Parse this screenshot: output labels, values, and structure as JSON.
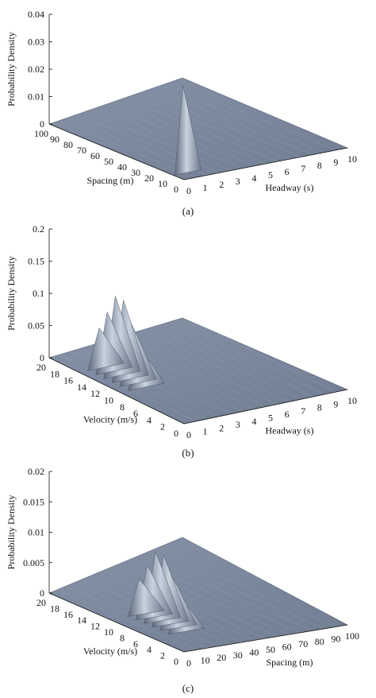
{
  "colors": {
    "surface_light": "#d8e0ea",
    "surface_mid": "#8b97aa",
    "surface_dark": "#5d697c",
    "floor": "#7e8b9f",
    "axis": "#111111"
  },
  "chart_data": [
    {
      "type": "surface",
      "caption": "(a)",
      "zlabel": "Probability Density",
      "xlabel": "Headway (s)",
      "ylabel": "Spacing (m)",
      "zlim": [
        0,
        0.04
      ],
      "xlim": [
        0,
        10
      ],
      "ylim": [
        0,
        100
      ],
      "ztick_labels": [
        "0",
        "0.01",
        "0.02",
        "0.03",
        "0.04"
      ],
      "xtick_labels": [
        "0",
        "1",
        "2",
        "3",
        "4",
        "5",
        "6",
        "7",
        "8",
        "9",
        "10"
      ],
      "ytick_labels": [
        "0",
        "10",
        "20",
        "30",
        "40",
        "50",
        "60",
        "70",
        "80",
        "90",
        "100"
      ],
      "peak": {
        "x": 0.6,
        "y": 8,
        "z": 0.032
      }
    },
    {
      "type": "surface",
      "caption": "(b)",
      "zlabel": "Probability Density",
      "xlabel": "Headway (s)",
      "ylabel": "Velocity (m/s)",
      "zlim": [
        0,
        0.2
      ],
      "xlim": [
        0,
        10
      ],
      "ylim": [
        0,
        20
      ],
      "ztick_labels": [
        "0",
        "0.05",
        "0.1",
        "0.15",
        "0.2"
      ],
      "xtick_labels": [
        "0",
        "1",
        "2",
        "3",
        "4",
        "5",
        "6",
        "7",
        "8",
        "9",
        "10"
      ],
      "ytick_labels": [
        "0",
        "2",
        "4",
        "6",
        "8",
        "10",
        "12",
        "14",
        "16",
        "18",
        "20"
      ],
      "peak": {
        "x": 1.2,
        "y": 12.5,
        "z": 0.14
      }
    },
    {
      "type": "surface",
      "caption": "(c)",
      "zlabel": "Probability Density",
      "xlabel": "Spacing (m)",
      "ylabel": "Velocity (m/s)",
      "zlim": [
        0,
        0.02
      ],
      "xlim": [
        0,
        100
      ],
      "ylim": [
        0,
        20
      ],
      "ztick_labels": [
        "0",
        "0.005",
        "0.01",
        "0.015",
        "0.02"
      ],
      "xtick_labels": [
        "0",
        "10",
        "20",
        "30",
        "40",
        "50",
        "60",
        "70",
        "80",
        "90",
        "100"
      ],
      "ytick_labels": [
        "0",
        "2",
        "4",
        "6",
        "8",
        "10",
        "12",
        "14",
        "16",
        "18",
        "20"
      ],
      "peak": {
        "x": 18,
        "y": 8,
        "z": 0.013
      }
    }
  ]
}
